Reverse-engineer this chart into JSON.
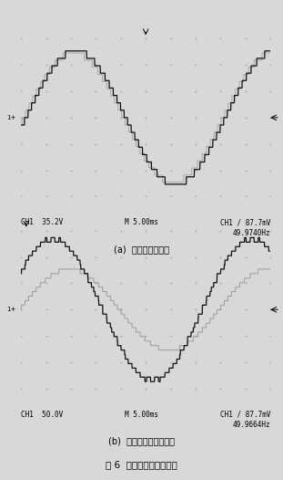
{
  "fig_width": 3.11,
  "fig_height": 5.26,
  "dpi": 100,
  "bg_color": "#d8d8d8",
  "osc_bg_top": "#f8f8f4",
  "osc_bg_bottom": "#f0f0ec",
  "grid_color": "#b0b090",
  "waveform_dark": "#111111",
  "waveform_gray": "#888888",
  "border_color": "#222222",
  "top_plot": {
    "label_left": "CH1  35.2V",
    "label_center": "M 5.00ms",
    "label_right": "CH1 / 87.7mV",
    "label_right2": "49.9740Hz",
    "caption": "(a)  相电压叠加波形"
  },
  "bottom_plot": {
    "label_left": "CH1  50.0V",
    "label_center": "M 5.00ms",
    "label_right": "CH1 / 87.7mV",
    "label_right2": "49.9664Hz",
    "caption": "(b)  线电压和线电压波形"
  },
  "figure_caption": "图 6  相电压和线电压波形"
}
